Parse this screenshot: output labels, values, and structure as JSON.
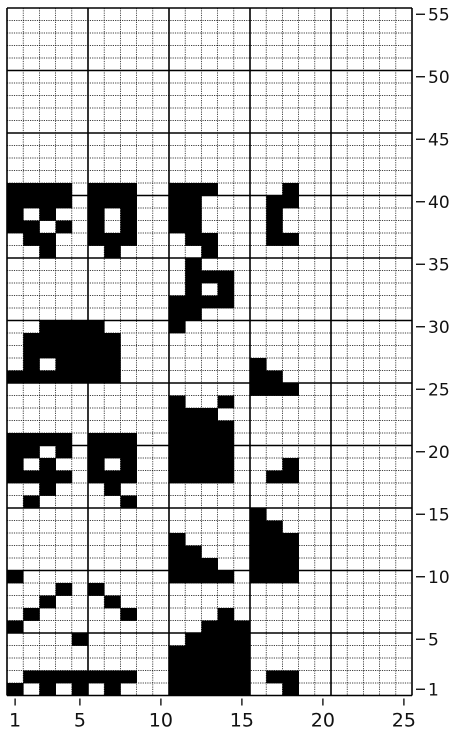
{
  "x_axis": {
    "tick_labels": [
      "1",
      "5",
      "10",
      "15",
      "20",
      "25"
    ]
  },
  "y_axis": {
    "tick_labels": [
      "1",
      "5",
      "10",
      "15",
      "20",
      "25",
      "30",
      "35",
      "40",
      "45",
      "50",
      "55"
    ]
  },
  "grid": {
    "columns": 25,
    "rows": 55,
    "colors": {
      "filled": "#000000",
      "empty": "#ffffff",
      "line": "#000000"
    },
    "filled_cells_by_row": {
      "1": [
        1,
        3,
        5,
        7,
        11,
        12,
        13,
        14,
        15,
        18
      ],
      "2": [
        2,
        3,
        4,
        5,
        6,
        7,
        8,
        11,
        12,
        13,
        14,
        15,
        17,
        18
      ],
      "3": [
        11,
        12,
        13,
        14,
        15
      ],
      "4": [
        11,
        12,
        13,
        14,
        15
      ],
      "5": [
        5,
        12,
        13,
        14,
        15
      ],
      "6": [
        1,
        13,
        14,
        15
      ],
      "7": [
        2,
        8,
        14
      ],
      "8": [
        3,
        7
      ],
      "9": [
        4,
        6
      ],
      "10": [
        1,
        11,
        12,
        13,
        14,
        16,
        17,
        18
      ],
      "11": [
        11,
        12,
        13,
        16,
        17,
        18
      ],
      "12": [
        11,
        12,
        16,
        17,
        18
      ],
      "13": [
        11,
        16,
        17,
        18
      ],
      "14": [
        16,
        17
      ],
      "15": [
        16
      ],
      "16": [
        2,
        8
      ],
      "17": [
        3,
        7
      ],
      "18": [
        1,
        2,
        3,
        4,
        6,
        7,
        8,
        11,
        12,
        13,
        14,
        17,
        18
      ],
      "19": [
        1,
        3,
        6,
        8,
        11,
        12,
        13,
        14,
        18
      ],
      "20": [
        1,
        2,
        4,
        6,
        7,
        8,
        11,
        12,
        13,
        14
      ],
      "21": [
        1,
        2,
        3,
        4,
        6,
        7,
        8,
        11,
        12,
        13,
        14
      ],
      "22": [
        11,
        12,
        13,
        14
      ],
      "23": [
        11,
        12,
        13
      ],
      "24": [
        11,
        14
      ],
      "25": [
        16,
        17,
        18
      ],
      "26": [
        1,
        2,
        3,
        4,
        5,
        6,
        7,
        16,
        17
      ],
      "27": [
        2,
        4,
        5,
        6,
        7,
        16
      ],
      "28": [
        2,
        3,
        4,
        5,
        6,
        7
      ],
      "29": [
        2,
        3,
        4,
        5,
        6,
        7
      ],
      "30": [
        3,
        4,
        5,
        6,
        11
      ],
      "31": [
        11,
        12
      ],
      "32": [
        11,
        12,
        13,
        14
      ],
      "33": [
        12,
        14
      ],
      "34": [
        12,
        13,
        14
      ],
      "35": [
        12
      ],
      "36": [
        3,
        7,
        13
      ],
      "37": [
        2,
        3,
        6,
        7,
        8,
        12,
        13,
        17,
        18
      ],
      "38": [
        1,
        2,
        4,
        6,
        8,
        11,
        12,
        17
      ],
      "39": [
        1,
        3,
        6,
        8,
        11,
        12,
        17
      ],
      "40": [
        1,
        2,
        3,
        4,
        6,
        7,
        8,
        11,
        12,
        17,
        18
      ],
      "41": [
        1,
        2,
        3,
        4,
        6,
        7,
        8,
        11,
        12,
        13,
        18
      ]
    }
  }
}
